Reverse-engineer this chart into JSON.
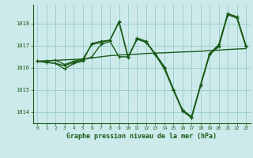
{
  "title": "Graphe pression niveau de la mer (hPa)",
  "bg_color": "#cdeaea",
  "grid_color": "#9ecfcf",
  "line_color": "#1a5c1a",
  "xlim": [
    -0.5,
    23.5
  ],
  "ylim": [
    1013.5,
    1018.85
  ],
  "yticks": [
    1014,
    1015,
    1016,
    1017,
    1018
  ],
  "xticks": [
    0,
    1,
    2,
    3,
    4,
    5,
    6,
    7,
    8,
    9,
    10,
    11,
    12,
    13,
    14,
    15,
    16,
    17,
    18,
    19,
    20,
    21,
    22,
    23
  ],
  "series": [
    {
      "y": [
        1016.3,
        1016.32,
        1016.34,
        1016.36,
        1016.38,
        1016.4,
        1016.45,
        1016.5,
        1016.55,
        1016.58,
        1016.6,
        1016.62,
        1016.65,
        1016.67,
        1016.68,
        1016.7,
        1016.72,
        1016.73,
        1016.75,
        1016.78,
        1016.8,
        1016.83,
        1016.85,
        1016.87
      ],
      "marker": false,
      "lw": 1.0
    },
    {
      "y": [
        1016.3,
        1016.25,
        1016.2,
        1015.95,
        1016.2,
        1016.3,
        1017.1,
        1017.2,
        1017.25,
        1018.05,
        1016.45,
        1017.35,
        1017.2,
        1016.6,
        1015.95,
        1015.0,
        1014.1,
        1013.75,
        1015.2,
        1016.65,
        1017.0,
        1018.45,
        1018.3,
        1017.0
      ],
      "marker": true,
      "lw": 1.0
    },
    {
      "y": [
        1016.3,
        1016.25,
        1016.2,
        1016.1,
        1016.25,
        1016.35,
        1016.5,
        1017.05,
        1017.2,
        1016.5,
        1016.5,
        1017.3,
        1017.15,
        1016.6,
        1016.0,
        1015.0,
        1014.05,
        1013.75,
        1015.2,
        1016.6,
        1016.95,
        1018.4,
        1018.25,
        1016.95
      ],
      "marker": true,
      "lw": 1.0
    },
    {
      "y": [
        1016.3,
        1016.3,
        1016.35,
        1016.15,
        1016.3,
        1016.4,
        1017.05,
        1017.15,
        1017.25,
        1018.1,
        1016.5,
        1017.3,
        1017.15,
        1016.65,
        1016.05,
        1015.05,
        1014.1,
        1013.8,
        1015.25,
        1016.65,
        1017.05,
        1018.45,
        1018.3,
        1017.0
      ],
      "marker": true,
      "lw": 1.0
    }
  ]
}
